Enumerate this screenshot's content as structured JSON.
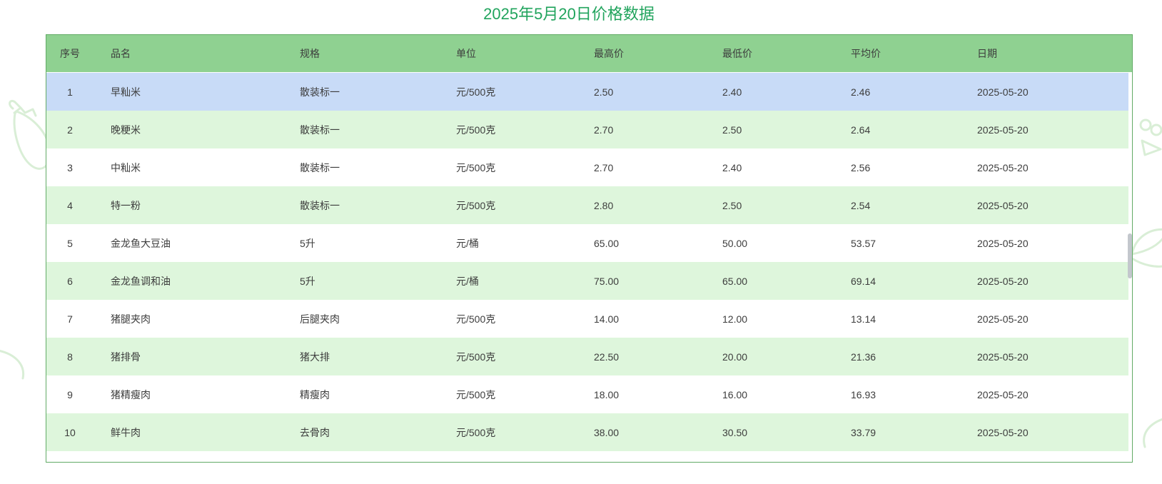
{
  "page": {
    "title": "2025年5月20日价格数据"
  },
  "colors": {
    "accent_green": "#21a45d",
    "header_bg": "#8fd191",
    "row_green": "#def6dc",
    "row_white": "#ffffff",
    "highlight_blue": "#c8dbf7",
    "table_border": "#62ab66",
    "text": "#3d3d3d",
    "scrollbar": "#c3c7cd",
    "decoration": "#d9eed6"
  },
  "table": {
    "columns": [
      "序号",
      "品名",
      "规格",
      "单位",
      "最高价",
      "最低价",
      "平均价",
      "日期"
    ],
    "column_keys": [
      "no",
      "name",
      "spec",
      "unit",
      "high",
      "low",
      "avg",
      "date"
    ],
    "highlighted_row_index": 0,
    "rows": [
      {
        "no": "1",
        "name": "早籼米",
        "spec": "散装标一",
        "unit": "元/500克",
        "high": "2.50",
        "low": "2.40",
        "avg": "2.46",
        "date": "2025-05-20"
      },
      {
        "no": "2",
        "name": "晚粳米",
        "spec": "散装标一",
        "unit": "元/500克",
        "high": "2.70",
        "low": "2.50",
        "avg": "2.64",
        "date": "2025-05-20"
      },
      {
        "no": "3",
        "name": "中籼米",
        "spec": "散装标一",
        "unit": "元/500克",
        "high": "2.70",
        "low": "2.40",
        "avg": "2.56",
        "date": "2025-05-20"
      },
      {
        "no": "4",
        "name": "特一粉",
        "spec": "散装标一",
        "unit": "元/500克",
        "high": "2.80",
        "low": "2.50",
        "avg": "2.54",
        "date": "2025-05-20"
      },
      {
        "no": "5",
        "name": "金龙鱼大豆油",
        "spec": "5升",
        "unit": "元/桶",
        "high": "65.00",
        "low": "50.00",
        "avg": "53.57",
        "date": "2025-05-20"
      },
      {
        "no": "6",
        "name": "金龙鱼调和油",
        "spec": "5升",
        "unit": "元/桶",
        "high": "75.00",
        "low": "65.00",
        "avg": "69.14",
        "date": "2025-05-20"
      },
      {
        "no": "7",
        "name": "猪腿夹肉",
        "spec": "后腿夹肉",
        "unit": "元/500克",
        "high": "14.00",
        "low": "12.00",
        "avg": "13.14",
        "date": "2025-05-20"
      },
      {
        "no": "8",
        "name": "猪排骨",
        "spec": "猪大排",
        "unit": "元/500克",
        "high": "22.50",
        "low": "20.00",
        "avg": "21.36",
        "date": "2025-05-20"
      },
      {
        "no": "9",
        "name": "猪精瘦肉",
        "spec": "精瘦肉",
        "unit": "元/500克",
        "high": "18.00",
        "low": "16.00",
        "avg": "16.93",
        "date": "2025-05-20"
      },
      {
        "no": "10",
        "name": "鲜牛肉",
        "spec": "去骨肉",
        "unit": "元/500克",
        "high": "38.00",
        "low": "30.50",
        "avg": "33.79",
        "date": "2025-05-20"
      }
    ]
  }
}
